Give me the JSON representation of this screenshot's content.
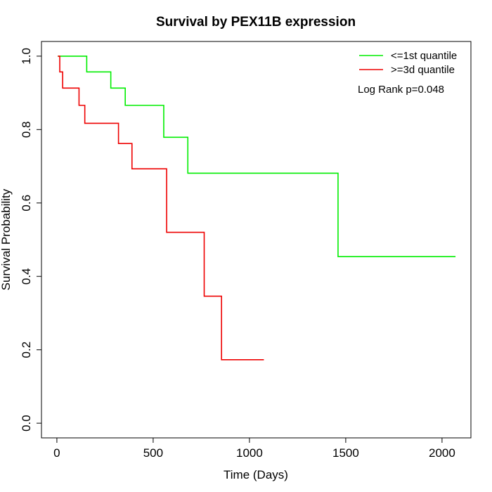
{
  "chart_data": {
    "type": "line",
    "title": "Survival by PEX11B expression",
    "xlabel": "Time (Days)",
    "ylabel": "Survival Probability",
    "xlim": [
      -80,
      2150
    ],
    "ylim": [
      -0.04,
      1.04
    ],
    "xticks": [
      0,
      500,
      1000,
      1500,
      2000
    ],
    "yticks": [
      0.0,
      0.2,
      0.4,
      0.6,
      0.8,
      1.0
    ],
    "xtick_labels": [
      "0",
      "500",
      "1000",
      "1500",
      "2000"
    ],
    "ytick_labels": [
      "0.0",
      "0.2",
      "0.4",
      "0.6",
      "0.8",
      "1.0"
    ],
    "grid": false,
    "legend_position": "top-right",
    "annotation": "Log Rank p=0.048",
    "series": [
      {
        "name": "<=1st quantile",
        "color": "#00ee00",
        "step": true,
        "x": [
          5,
          155,
          280,
          355,
          555,
          680,
          1460,
          2070
        ],
        "y": [
          1.0,
          0.957,
          0.913,
          0.866,
          0.779,
          0.681,
          0.454,
          0.454
        ]
      },
      {
        "name": ">=3d quantile",
        "color": "#ee0000",
        "step": true,
        "x": [
          5,
          15,
          30,
          115,
          145,
          320,
          390,
          570,
          765,
          855,
          1075
        ],
        "y": [
          1.0,
          0.957,
          0.913,
          0.866,
          0.817,
          0.762,
          0.693,
          0.52,
          0.346,
          0.173,
          0.173
        ]
      }
    ]
  }
}
